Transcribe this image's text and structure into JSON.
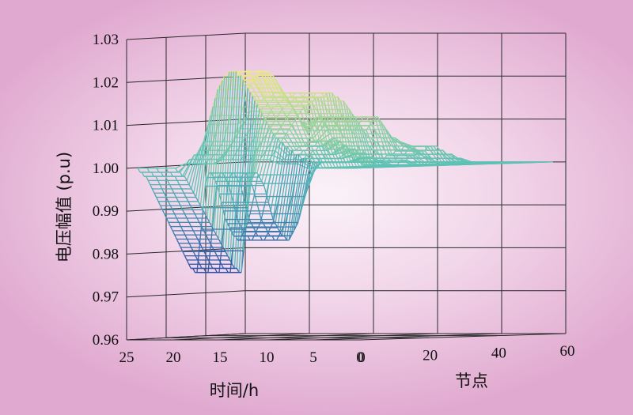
{
  "colors": {
    "grid": "#2a2a2a",
    "low": "#2d4fa8",
    "mid": "#58c0b8",
    "high": "#f3ec7a"
  },
  "chart_data": {
    "type": "surface3d",
    "title": "",
    "zlabel": "电压幅值 (p.u)",
    "xlabel": "时间/h",
    "ylabel": "节点",
    "zlim": [
      0.96,
      1.03
    ],
    "xlim": [
      0,
      25
    ],
    "ylim": [
      0,
      60
    ],
    "z_ticks": [
      "0.96",
      "0.97",
      "0.98",
      "0.99",
      "1.00",
      "1.01",
      "1.02",
      "1.03"
    ],
    "x_ticks": [
      "25",
      "20",
      "15",
      "10",
      "5",
      "0"
    ],
    "y_ticks": [
      "0",
      "20",
      "40",
      "60"
    ],
    "grid": true,
    "nodes": [
      1,
      2,
      3,
      4,
      5,
      6,
      7,
      8,
      9,
      10,
      11,
      12,
      13,
      14,
      15,
      16,
      17,
      18,
      19,
      20,
      21,
      22,
      23,
      24,
      25,
      26,
      27,
      28,
      29,
      30,
      31,
      32,
      33,
      34,
      35,
      36,
      37,
      38,
      39,
      40,
      41,
      42,
      43,
      44,
      45,
      46,
      47,
      48,
      49,
      50,
      51,
      52,
      53,
      54,
      55,
      56,
      57,
      58,
      59,
      60
    ],
    "hours": [
      1,
      2,
      3,
      4,
      5,
      6,
      7,
      8,
      9,
      10,
      11,
      12,
      13,
      14,
      15,
      16,
      17,
      18,
      19,
      20,
      21,
      22,
      23,
      24
    ],
    "voltage_profiles": [
      {
        "hours": [
          1,
          6
        ],
        "values": [
          1.0,
          1.0,
          1.0,
          1.0,
          1.0,
          1.0,
          1.0,
          1.0,
          1.0,
          1.0,
          1.0,
          1.0,
          1.0,
          1.0,
          1.0,
          1.0,
          1.0,
          1.0,
          1.0,
          1.0,
          1.0,
          1.0,
          1.0,
          1.0,
          1.0,
          1.0,
          1.0,
          1.0,
          1.0,
          1.0,
          1.0,
          1.0,
          1.0,
          1.0,
          1.0,
          1.0,
          1.0,
          1.0,
          1.0,
          1.0,
          1.0,
          1.0,
          1.0,
          1.0,
          1.0,
          1.0,
          1.0,
          1.0,
          1.0,
          1.0,
          1.0,
          1.0,
          1.0,
          1.0,
          1.0,
          1.0,
          1.0,
          1.0,
          1.0,
          1.0
        ]
      },
      {
        "hours": [
          7,
          9
        ],
        "values": [
          1.001,
          1.002,
          1.002,
          1.003,
          1.003,
          1.004,
          1.004,
          1.005,
          1.005,
          1.005,
          1.006,
          1.006,
          1.006,
          1.006,
          1.006,
          1.005,
          1.005,
          1.004,
          1.004,
          1.004,
          1.003,
          1.003,
          1.003,
          1.002,
          1.002,
          1.002,
          1.001,
          1.001,
          1.001,
          1.0,
          1.0,
          1.0,
          1.0,
          1.0,
          1.001,
          1.001,
          1.001,
          1.002,
          1.002,
          1.002,
          1.003,
          1.003,
          1.003,
          1.004,
          1.004,
          1.004,
          1.004,
          1.003,
          1.003,
          1.002,
          1.002,
          1.002,
          1.001,
          1.001,
          1.001,
          1.0,
          1.0,
          1.0,
          1.0,
          1.0
        ]
      },
      {
        "hours": [
          10,
          15
        ],
        "values": [
          1.002,
          1.003,
          1.004,
          1.005,
          1.006,
          1.007,
          1.008,
          1.009,
          1.01,
          1.011,
          1.012,
          1.013,
          1.014,
          1.014,
          1.015,
          1.015,
          1.016,
          1.016,
          1.016,
          1.016,
          1.017,
          1.017,
          1.017,
          1.016,
          1.016,
          1.015,
          1.015,
          1.014,
          1.013,
          1.012,
          1.011,
          1.01,
          1.009,
          1.008,
          1.008,
          1.009,
          1.01,
          1.011,
          1.011,
          1.01,
          1.009,
          1.008,
          1.007,
          1.006,
          1.006,
          1.005,
          1.005,
          1.004,
          1.004,
          1.003,
          1.003,
          1.002,
          1.002,
          1.001,
          1.001,
          1.001,
          1.0,
          1.0,
          1.0,
          1.0
        ]
      },
      {
        "hours": [
          16,
          19
        ],
        "values": [
          1.001,
          1.001,
          1.002,
          1.002,
          1.003,
          1.003,
          1.004,
          1.005,
          1.006,
          1.008,
          1.01,
          1.012,
          1.014,
          1.016,
          1.018,
          1.019,
          1.02,
          1.021,
          1.021,
          1.022,
          1.022,
          1.022,
          1.022,
          1.021,
          1.021,
          1.02,
          1.019,
          1.018,
          1.017,
          1.016,
          1.015,
          1.014,
          1.013,
          1.012,
          1.011,
          1.01,
          1.009,
          1.008,
          1.007,
          1.006,
          1.006,
          1.005,
          1.005,
          1.004,
          1.004,
          1.003,
          1.003,
          1.002,
          1.002,
          1.002,
          1.001,
          1.001,
          1.001,
          1.0,
          1.0,
          1.0,
          1.0,
          1.0,
          1.0,
          1.0
        ]
      },
      {
        "hours": [
          20,
          24
        ],
        "values": [
          1.0,
          0.999,
          0.999,
          0.998,
          0.998,
          0.997,
          0.996,
          0.995,
          0.994,
          0.993,
          0.992,
          0.991,
          0.99,
          0.989,
          0.988,
          0.987,
          0.986,
          0.985,
          0.984,
          0.983,
          0.982,
          0.981,
          0.98,
          0.979,
          0.978,
          0.977,
          0.976,
          0.976,
          0.975,
          0.975,
          0.98,
          0.985,
          0.99,
          0.995,
          0.997,
          0.998,
          0.998,
          0.997,
          0.996,
          0.995,
          0.993,
          0.991,
          0.989,
          0.987,
          0.986,
          0.985,
          0.984,
          0.983,
          0.983,
          0.982,
          0.982,
          0.983,
          0.984,
          0.985,
          0.986,
          0.988,
          0.99,
          0.992,
          0.995,
          0.997
        ]
      }
    ]
  }
}
